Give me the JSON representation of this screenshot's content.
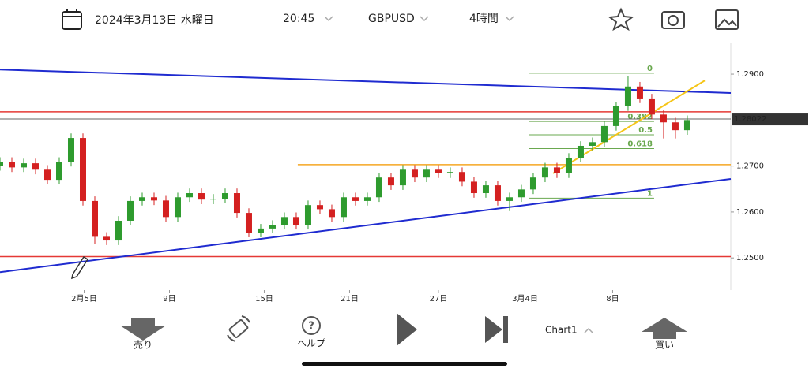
{
  "header": {
    "date": "2024年3月13日 水曜日",
    "time": "20:45",
    "symbol": "GBPUSD",
    "timeframe": "4時間"
  },
  "chart_data": {
    "type": "candlestick",
    "open": [
      1.27,
      1.2709,
      1.2697,
      1.2706,
      1.2692,
      1.267,
      1.2709,
      1.2761,
      1.2624,
      1.2546,
      1.2538,
      1.2581,
      1.2624,
      1.2632,
      1.2625,
      1.2589,
      1.2632,
      1.2641,
      1.2627,
      1.2629,
      1.2641,
      1.2598,
      1.2555,
      1.2564,
      1.2572,
      1.2589,
      1.2572,
      1.2615,
      1.2606,
      1.2589,
      1.2632,
      1.2624,
      1.2632,
      1.2675,
      1.2658,
      1.2692,
      1.2675,
      1.2692,
      1.2684,
      1.2687,
      1.2666,
      1.2641,
      1.2658,
      1.2624,
      1.2632,
      1.2649,
      1.2675,
      1.2697,
      1.2684,
      1.2718,
      1.2744,
      1.2752,
      1.2787,
      1.283,
      1.2873,
      1.2847,
      1.2812,
      1.2795,
      1.2778
    ],
    "high": [
      1.2719,
      1.2719,
      1.2716,
      1.2716,
      1.2702,
      1.2719,
      1.2771,
      1.2771,
      1.2634,
      1.2556,
      1.2591,
      1.2634,
      1.2642,
      1.2642,
      1.2635,
      1.2642,
      1.2651,
      1.2651,
      1.2639,
      1.2651,
      1.2651,
      1.2608,
      1.2574,
      1.2582,
      1.2599,
      1.2599,
      1.2625,
      1.2625,
      1.2616,
      1.2642,
      1.2642,
      1.2642,
      1.2685,
      1.2685,
      1.2702,
      1.2702,
      1.2702,
      1.2702,
      1.2697,
      1.2697,
      1.2676,
      1.2668,
      1.2668,
      1.2642,
      1.2659,
      1.2685,
      1.2707,
      1.2707,
      1.2728,
      1.2754,
      1.2762,
      1.2797,
      1.284,
      1.2895,
      1.2883,
      1.2857,
      1.2822,
      1.2805,
      1.281
    ],
    "low": [
      1.269,
      1.2687,
      1.2687,
      1.2682,
      1.266,
      1.266,
      1.2699,
      1.2614,
      1.253,
      1.2528,
      1.2528,
      1.2571,
      1.2614,
      1.2615,
      1.2579,
      1.2579,
      1.2622,
      1.2617,
      1.2617,
      1.2619,
      1.2588,
      1.2545,
      1.2545,
      1.2554,
      1.2562,
      1.2562,
      1.2562,
      1.2596,
      1.2579,
      1.2579,
      1.2614,
      1.2614,
      1.2622,
      1.2648,
      1.2648,
      1.2665,
      1.2665,
      1.2674,
      1.2674,
      1.2656,
      1.2631,
      1.2631,
      1.2614,
      1.2602,
      1.2622,
      1.2639,
      1.2665,
      1.2674,
      1.2674,
      1.2708,
      1.2734,
      1.2742,
      1.2777,
      1.282,
      1.2837,
      1.2802,
      1.276,
      1.276,
      1.2768
    ],
    "close": [
      1.2709,
      1.2697,
      1.2706,
      1.2692,
      1.267,
      1.2709,
      1.2761,
      1.2624,
      1.2546,
      1.2538,
      1.2581,
      1.2624,
      1.2632,
      1.2625,
      1.2589,
      1.2632,
      1.2641,
      1.2627,
      1.2629,
      1.2641,
      1.2598,
      1.2555,
      1.2564,
      1.2572,
      1.2589,
      1.2572,
      1.2615,
      1.2606,
      1.2589,
      1.2632,
      1.2624,
      1.2632,
      1.2675,
      1.2658,
      1.2692,
      1.2675,
      1.2692,
      1.2684,
      1.2687,
      1.2666,
      1.2641,
      1.2658,
      1.2624,
      1.2632,
      1.2649,
      1.2675,
      1.2697,
      1.2684,
      1.2718,
      1.2744,
      1.2752,
      1.2787,
      1.283,
      1.2873,
      1.2847,
      1.2812,
      1.2795,
      1.2778,
      1.28
    ],
    "up_color": "#2e9b2e",
    "down_color": "#d42020",
    "xlim": [
      0,
      61.67
    ],
    "ylim": [
      1.243,
      1.2967
    ],
    "yticks": [
      {
        "value": 1.29,
        "label": "1.2900"
      },
      {
        "value": 1.27,
        "label": "1.2700"
      },
      {
        "value": 1.26,
        "label": "1.2600"
      },
      {
        "value": 1.25,
        "label": "1.2500"
      }
    ],
    "xticks": [
      {
        "value": 7.1,
        "label": "2月5日"
      },
      {
        "value": 14.3,
        "label": "9日"
      },
      {
        "value": 22.3,
        "label": "15日"
      },
      {
        "value": 29.5,
        "label": "21日"
      },
      {
        "value": 37,
        "label": "27日"
      },
      {
        "value": 44.3,
        "label": "3月4日"
      },
      {
        "value": 51.7,
        "label": "8日"
      }
    ],
    "current_price": 1.28022,
    "hlines": [
      {
        "price": 1.2818,
        "color": "#e53935"
      },
      {
        "price": 1.2503,
        "color": "#e53935"
      },
      {
        "price": 1.2703,
        "color": "#f5a623",
        "x0": 25.13
      }
    ],
    "trendlines": [
      {
        "x": [
          0,
          61.67
        ],
        "y": [
          1.291,
          1.2859
        ],
        "color": "#1f2bd0"
      },
      {
        "x": [
          0,
          61.67
        ],
        "y": [
          1.2469,
          1.2672
        ],
        "color": "#1f2bd0"
      },
      {
        "x": [
          46.67,
          59.47
        ],
        "y": [
          1.2684,
          1.2886
        ],
        "color": "#f5c518"
      }
    ],
    "fib": {
      "x": [
        44.67,
        55.2
      ],
      "levels": [
        0,
        0.382,
        0.5,
        0.618,
        1
      ],
      "prices": [
        1.2902,
        1.2797,
        1.2768,
        1.2738,
        1.263
      ],
      "color": "#6aa84f"
    }
  },
  "toolbar": {
    "sell": "売り",
    "help": "ヘルプ",
    "chart": "Chart1",
    "buy": "買い"
  }
}
